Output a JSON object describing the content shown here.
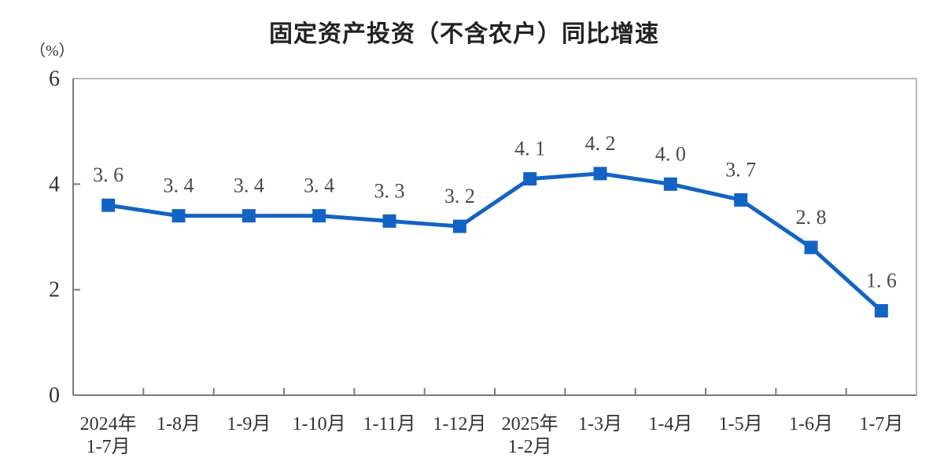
{
  "page": {
    "background": "#ffffff"
  },
  "chart_data": {
    "type": "line",
    "title": "固定资产投资（不含农户）同比增速",
    "unit_label": "（%）",
    "xlabel": "",
    "ylabel": "（%）",
    "categories": [
      [
        "2024年",
        "1-7月"
      ],
      [
        "1-8月"
      ],
      [
        "1-9月"
      ],
      [
        "1-10月"
      ],
      [
        "1-11月"
      ],
      [
        "1-12月"
      ],
      [
        "2025年",
        "1-2月"
      ],
      [
        "1-3月"
      ],
      [
        "1-4月"
      ],
      [
        "1-5月"
      ],
      [
        "1-6月"
      ],
      [
        "1-7月"
      ]
    ],
    "series": [
      {
        "name": "固定资产投资（不含农户）同比增速",
        "values": [
          3.6,
          3.4,
          3.4,
          3.4,
          3.3,
          3.2,
          4.1,
          4.2,
          4.0,
          3.7,
          2.8,
          1.6
        ]
      }
    ],
    "point_labels": [
      "3. 6",
      "3. 4",
      "3. 4",
      "3. 4",
      "3. 3",
      "3. 2",
      "4. 1",
      "4. 2",
      "4. 0",
      "3. 7",
      "2. 8",
      "1. 6"
    ],
    "y_ticks": [
      0,
      2,
      4,
      6
    ],
    "ylim": [
      0,
      6
    ],
    "grid": false,
    "legend_position": "none",
    "marker_shape": "square",
    "colors": {
      "line": "#1363C5",
      "marker": "#1363C5",
      "point_label": "#4a4a4a",
      "axis_text": "#333333",
      "title": "#222222",
      "axis_dark": "#7a7a7a",
      "frame_light": "#b5b5b5"
    }
  }
}
